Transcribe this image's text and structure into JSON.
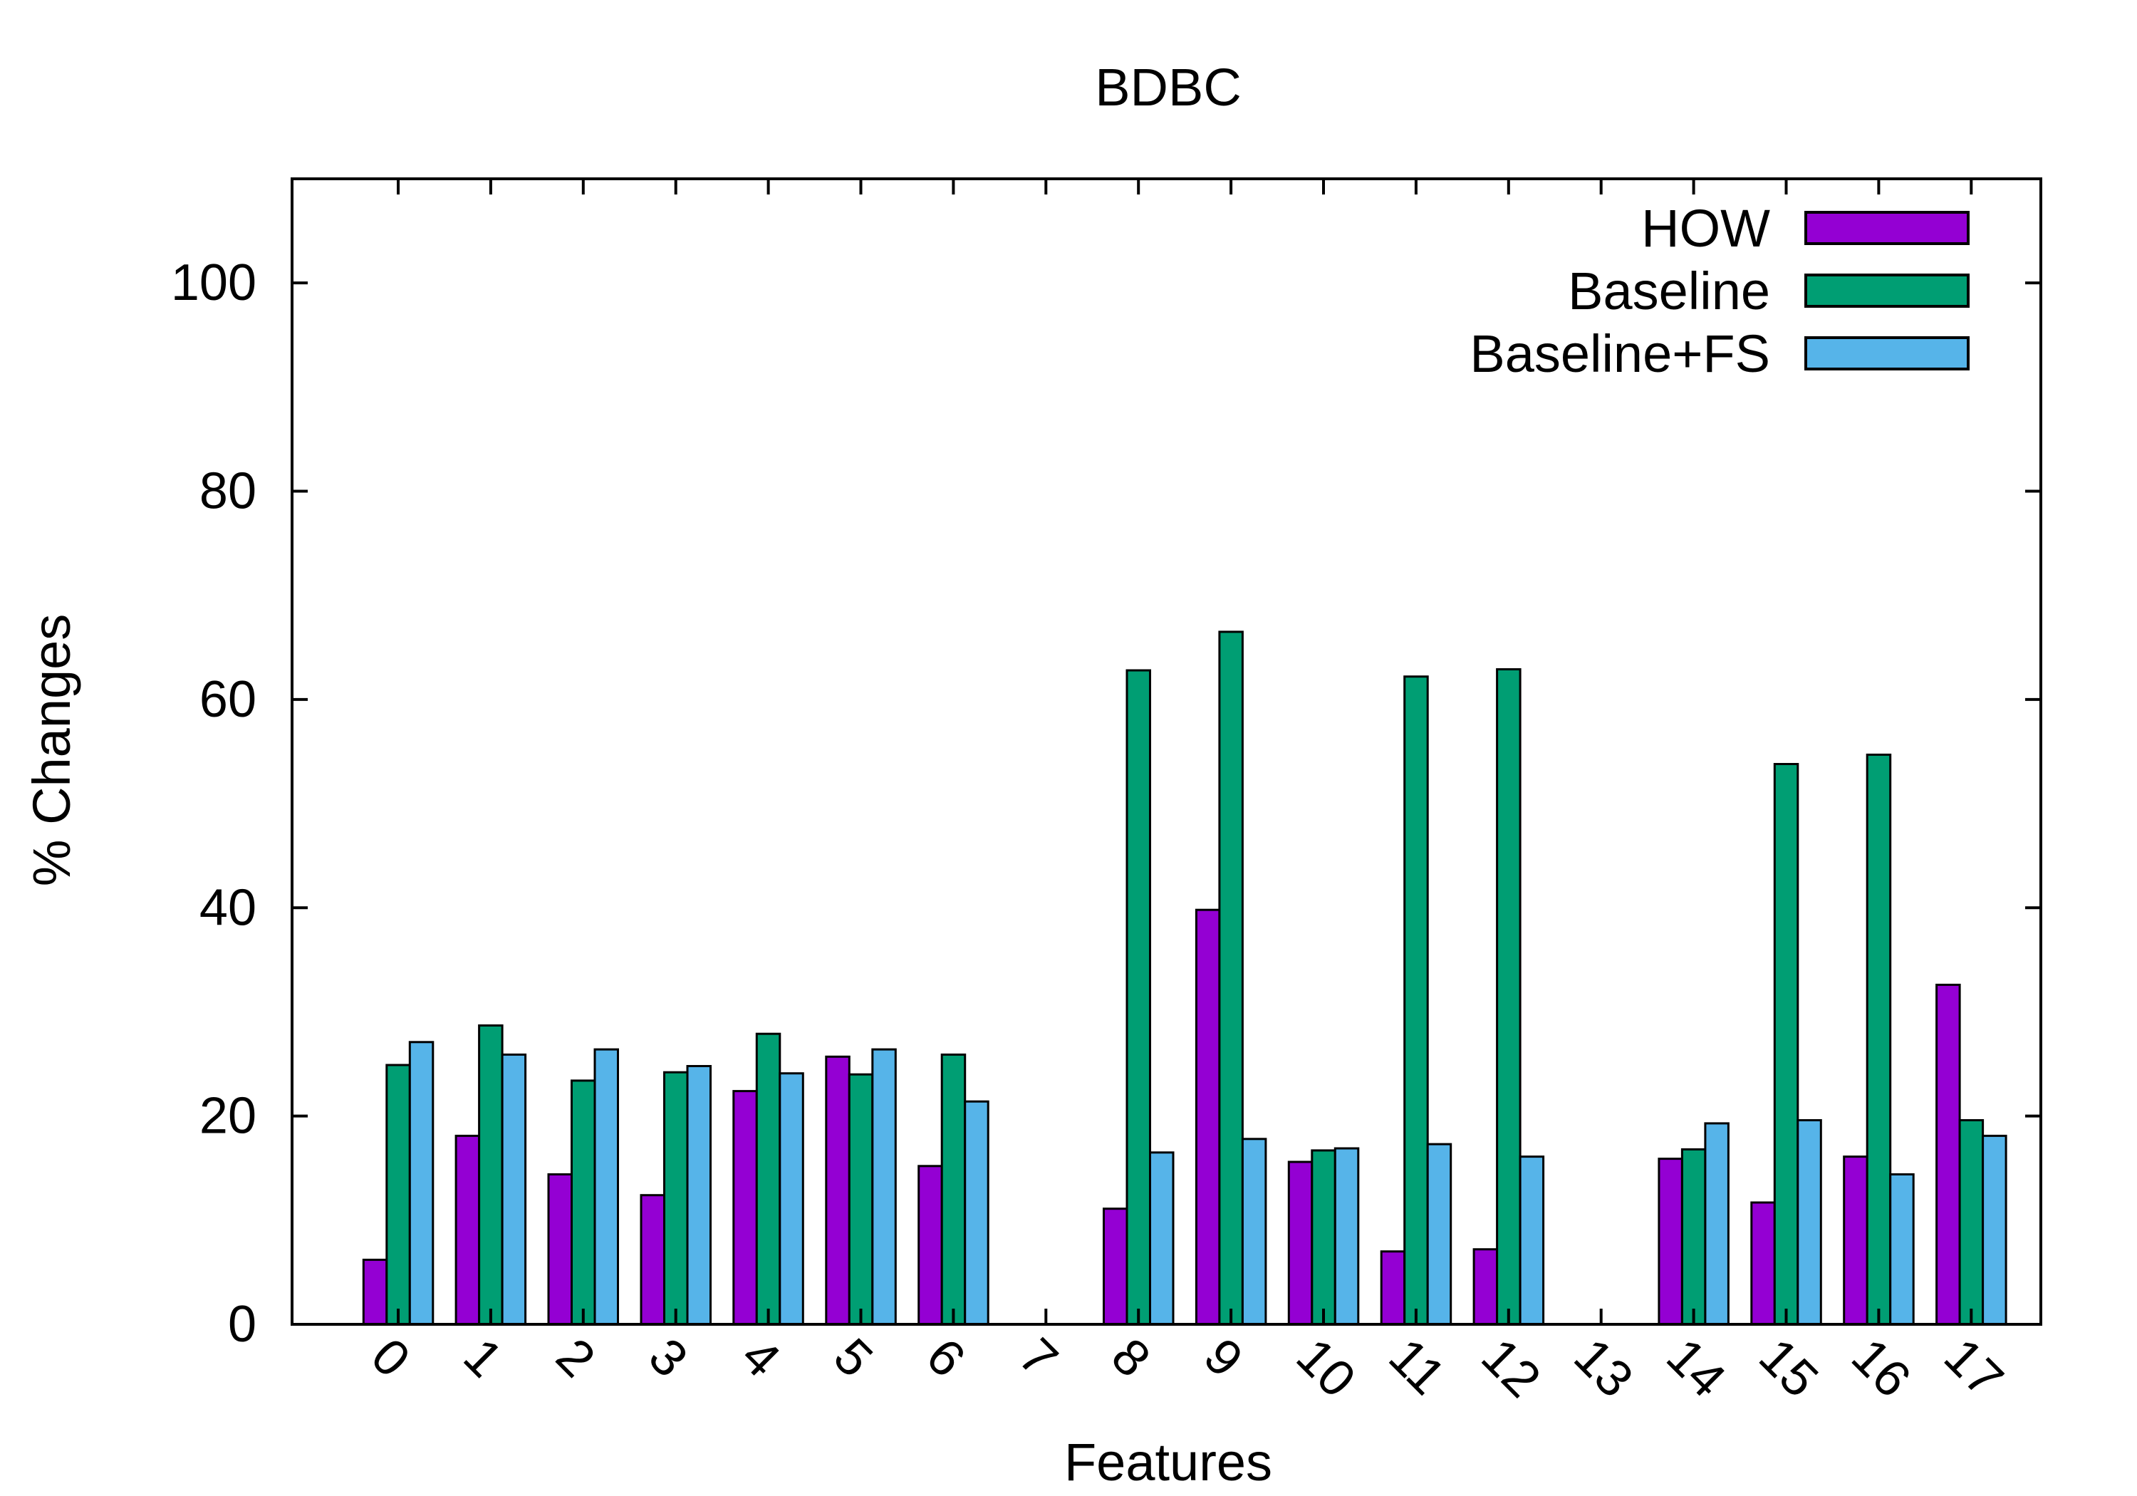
{
  "chart_data": {
    "type": "bar",
    "title": "BDBC",
    "xlabel": "Features",
    "ylabel": "% Changes",
    "categories": [
      "0",
      "1",
      "2",
      "3",
      "4",
      "5",
      "6",
      "7",
      "8",
      "9",
      "10",
      "11",
      "12",
      "13",
      "14",
      "15",
      "16",
      "17"
    ],
    "ylim": [
      0,
      110
    ],
    "yticks": [
      0,
      20,
      40,
      60,
      80,
      100
    ],
    "grid": false,
    "legend_position": "top-right",
    "series": [
      {
        "name": "HOW",
        "color": "#9400d3",
        "values": [
          6.2,
          18.1,
          14.4,
          12.4,
          22.4,
          25.7,
          15.2,
          0,
          11.1,
          39.8,
          15.6,
          7.0,
          7.2,
          0,
          15.9,
          11.7,
          16.1,
          32.6
        ]
      },
      {
        "name": "Baseline",
        "color": "#009e73",
        "values": [
          24.9,
          28.7,
          23.4,
          24.2,
          27.9,
          24.0,
          25.9,
          0,
          62.8,
          66.5,
          16.7,
          62.2,
          62.9,
          0,
          16.8,
          53.8,
          54.7,
          19.6
        ]
      },
      {
        "name": "Baseline+FS",
        "color": "#56b4e9",
        "values": [
          27.1,
          25.9,
          26.4,
          24.8,
          24.1,
          26.4,
          21.4,
          0,
          16.5,
          17.8,
          16.9,
          17.3,
          16.1,
          0,
          19.3,
          19.6,
          14.4,
          18.1
        ]
      }
    ]
  }
}
